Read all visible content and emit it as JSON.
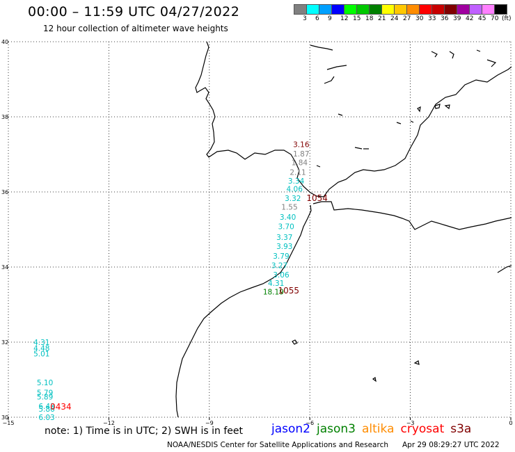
{
  "header": {
    "title": "00:00 – 11:59 UTC 04/27/2022",
    "subtitle": "12 hour collection of altimeter wave heights"
  },
  "legend": {
    "unit_label": "(ft)",
    "labels": [
      "3",
      "6",
      "9",
      "12",
      "15",
      "18",
      "21",
      "24",
      "27",
      "30",
      "33",
      "36",
      "39",
      "42",
      "45",
      "70"
    ],
    "colors": [
      "#808080",
      "#00ffff",
      "#00a0ff",
      "#0000ff",
      "#00ff00",
      "#00c800",
      "#008000",
      "#ffff00",
      "#ffc800",
      "#ff8c00",
      "#ff0000",
      "#c80000",
      "#800000",
      "#a000a0",
      "#c060ff",
      "#ff80ff",
      "#000000"
    ]
  },
  "axes": {
    "x_ticks": [
      "−15",
      "−12",
      "−9",
      "−6",
      "−3",
      "0"
    ],
    "x_values": [
      -15,
      -12,
      -9,
      -6,
      -3,
      0
    ],
    "y_ticks": [
      "40",
      "38",
      "36",
      "34",
      "32",
      "30"
    ],
    "y_values": [
      40,
      38,
      36,
      34,
      32,
      30
    ]
  },
  "observations": [
    {
      "value": "3.16",
      "lon": -6.5,
      "lat": 37.27,
      "color": "#800000"
    },
    {
      "value": "1.87",
      "lon": -6.5,
      "lat": 37.02,
      "color": "#808080"
    },
    {
      "value": "1.84",
      "lon": -6.55,
      "lat": 36.79,
      "color": "#808080"
    },
    {
      "value": "2.11",
      "lon": -6.6,
      "lat": 36.53,
      "color": "#808080"
    },
    {
      "value": "3.34",
      "lon": -6.65,
      "lat": 36.3,
      "color": "#00c0c0"
    },
    {
      "value": "4.06",
      "lon": -6.7,
      "lat": 36.08,
      "color": "#00c0c0"
    },
    {
      "value": "3.32",
      "lon": -6.75,
      "lat": 35.83,
      "color": "#00c0c0"
    },
    {
      "value": "1.55",
      "lon": -6.85,
      "lat": 35.6,
      "color": "#808080"
    },
    {
      "value": "3.40",
      "lon": -6.9,
      "lat": 35.33,
      "color": "#00c0c0"
    },
    {
      "value": "3.70",
      "lon": -6.95,
      "lat": 35.08,
      "color": "#00c0c0"
    },
    {
      "value": "3.37",
      "lon": -7.0,
      "lat": 34.8,
      "color": "#00c0c0"
    },
    {
      "value": "3.93",
      "lon": -7.0,
      "lat": 34.56,
      "color": "#00c0c0"
    },
    {
      "value": "3.79",
      "lon": -7.1,
      "lat": 34.3,
      "color": "#00c0c0"
    },
    {
      "value": "3.27",
      "lon": -7.15,
      "lat": 34.05,
      "color": "#00c0c0"
    },
    {
      "value": "3.06",
      "lon": -7.1,
      "lat": 33.8,
      "color": "#00c0c0"
    },
    {
      "value": "4.31",
      "lon": -7.25,
      "lat": 33.57,
      "color": "#00c0c0"
    },
    {
      "value": "18.19",
      "lon": -7.4,
      "lat": 33.34,
      "color": "#008000"
    },
    {
      "value": "4.31",
      "lon": -14.25,
      "lat": 32.0,
      "color": "#00c0c0"
    },
    {
      "value": "4.48",
      "lon": -14.25,
      "lat": 31.84,
      "color": "#00c0c0"
    },
    {
      "value": "5.01",
      "lon": -14.25,
      "lat": 31.69,
      "color": "#00c0c0"
    },
    {
      "value": "5.10",
      "lon": -14.15,
      "lat": 30.93,
      "color": "#00c0c0"
    },
    {
      "value": "5.79",
      "lon": -14.15,
      "lat": 30.66,
      "color": "#00c0c0"
    },
    {
      "value": "5.89",
      "lon": -14.15,
      "lat": 30.55,
      "color": "#00c0c0"
    },
    {
      "value": "6.43",
      "lon": -14.1,
      "lat": 30.3,
      "color": "#00c0c0"
    },
    {
      "value": "5.86",
      "lon": -14.1,
      "lat": 30.22,
      "color": "#00c0c0"
    },
    {
      "value": "6.03",
      "lon": -14.1,
      "lat": 30.0,
      "color": "#00c0c0"
    }
  ],
  "time_labels": [
    {
      "value": "1054",
      "lon": -6.1,
      "lat": 35.83,
      "color": "#800000"
    },
    {
      "value": "1055",
      "lon": -6.95,
      "lat": 33.37,
      "color": "#800000"
    },
    {
      "value": "0434",
      "lon": -13.75,
      "lat": 30.28,
      "color": "#ff0000"
    }
  ],
  "note": "note: 1) Time is in UTC; 2) SWH is in feet",
  "satellites": [
    {
      "name": "jason2",
      "color": "#0000ff"
    },
    {
      "name": "jason3",
      "color": "#008000"
    },
    {
      "name": "altika",
      "color": "#ff8c00"
    },
    {
      "name": "cryosat",
      "color": "#ff0000"
    },
    {
      "name": "s3a",
      "color": "#800000"
    }
  ],
  "credit": "NOAA/NESDIS Center for Satellite Applications and Research",
  "timestamp": "Apr 29 08:29:27 UTC 2022"
}
